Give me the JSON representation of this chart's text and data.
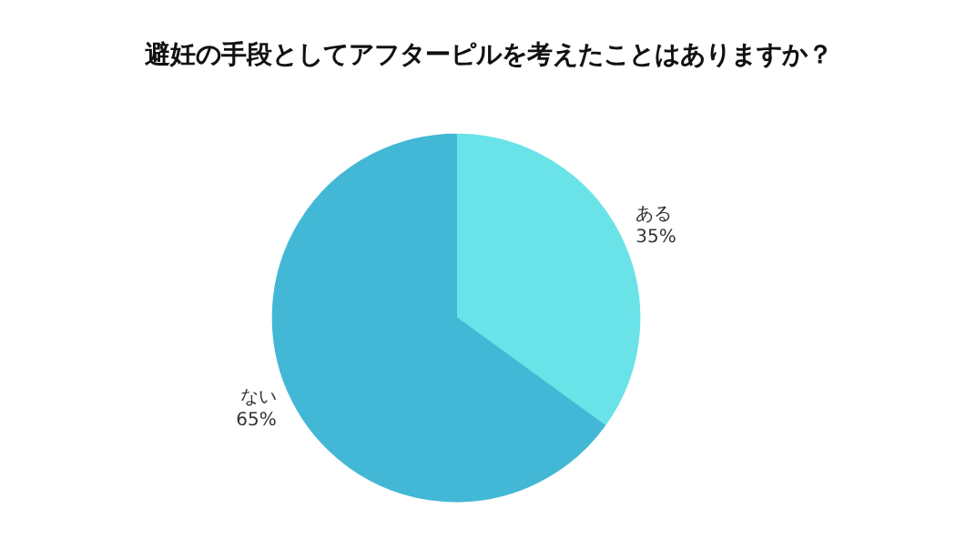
{
  "chart_data": {
    "type": "pie",
    "title": "避妊の手段としてアフターピルを考えたことはありますか？",
    "categories": [
      "ある",
      "ない"
    ],
    "values": [
      35,
      65
    ],
    "colors": [
      "#6ae3e8",
      "#43b8d6"
    ],
    "value_labels": [
      "35%",
      "65%"
    ]
  }
}
